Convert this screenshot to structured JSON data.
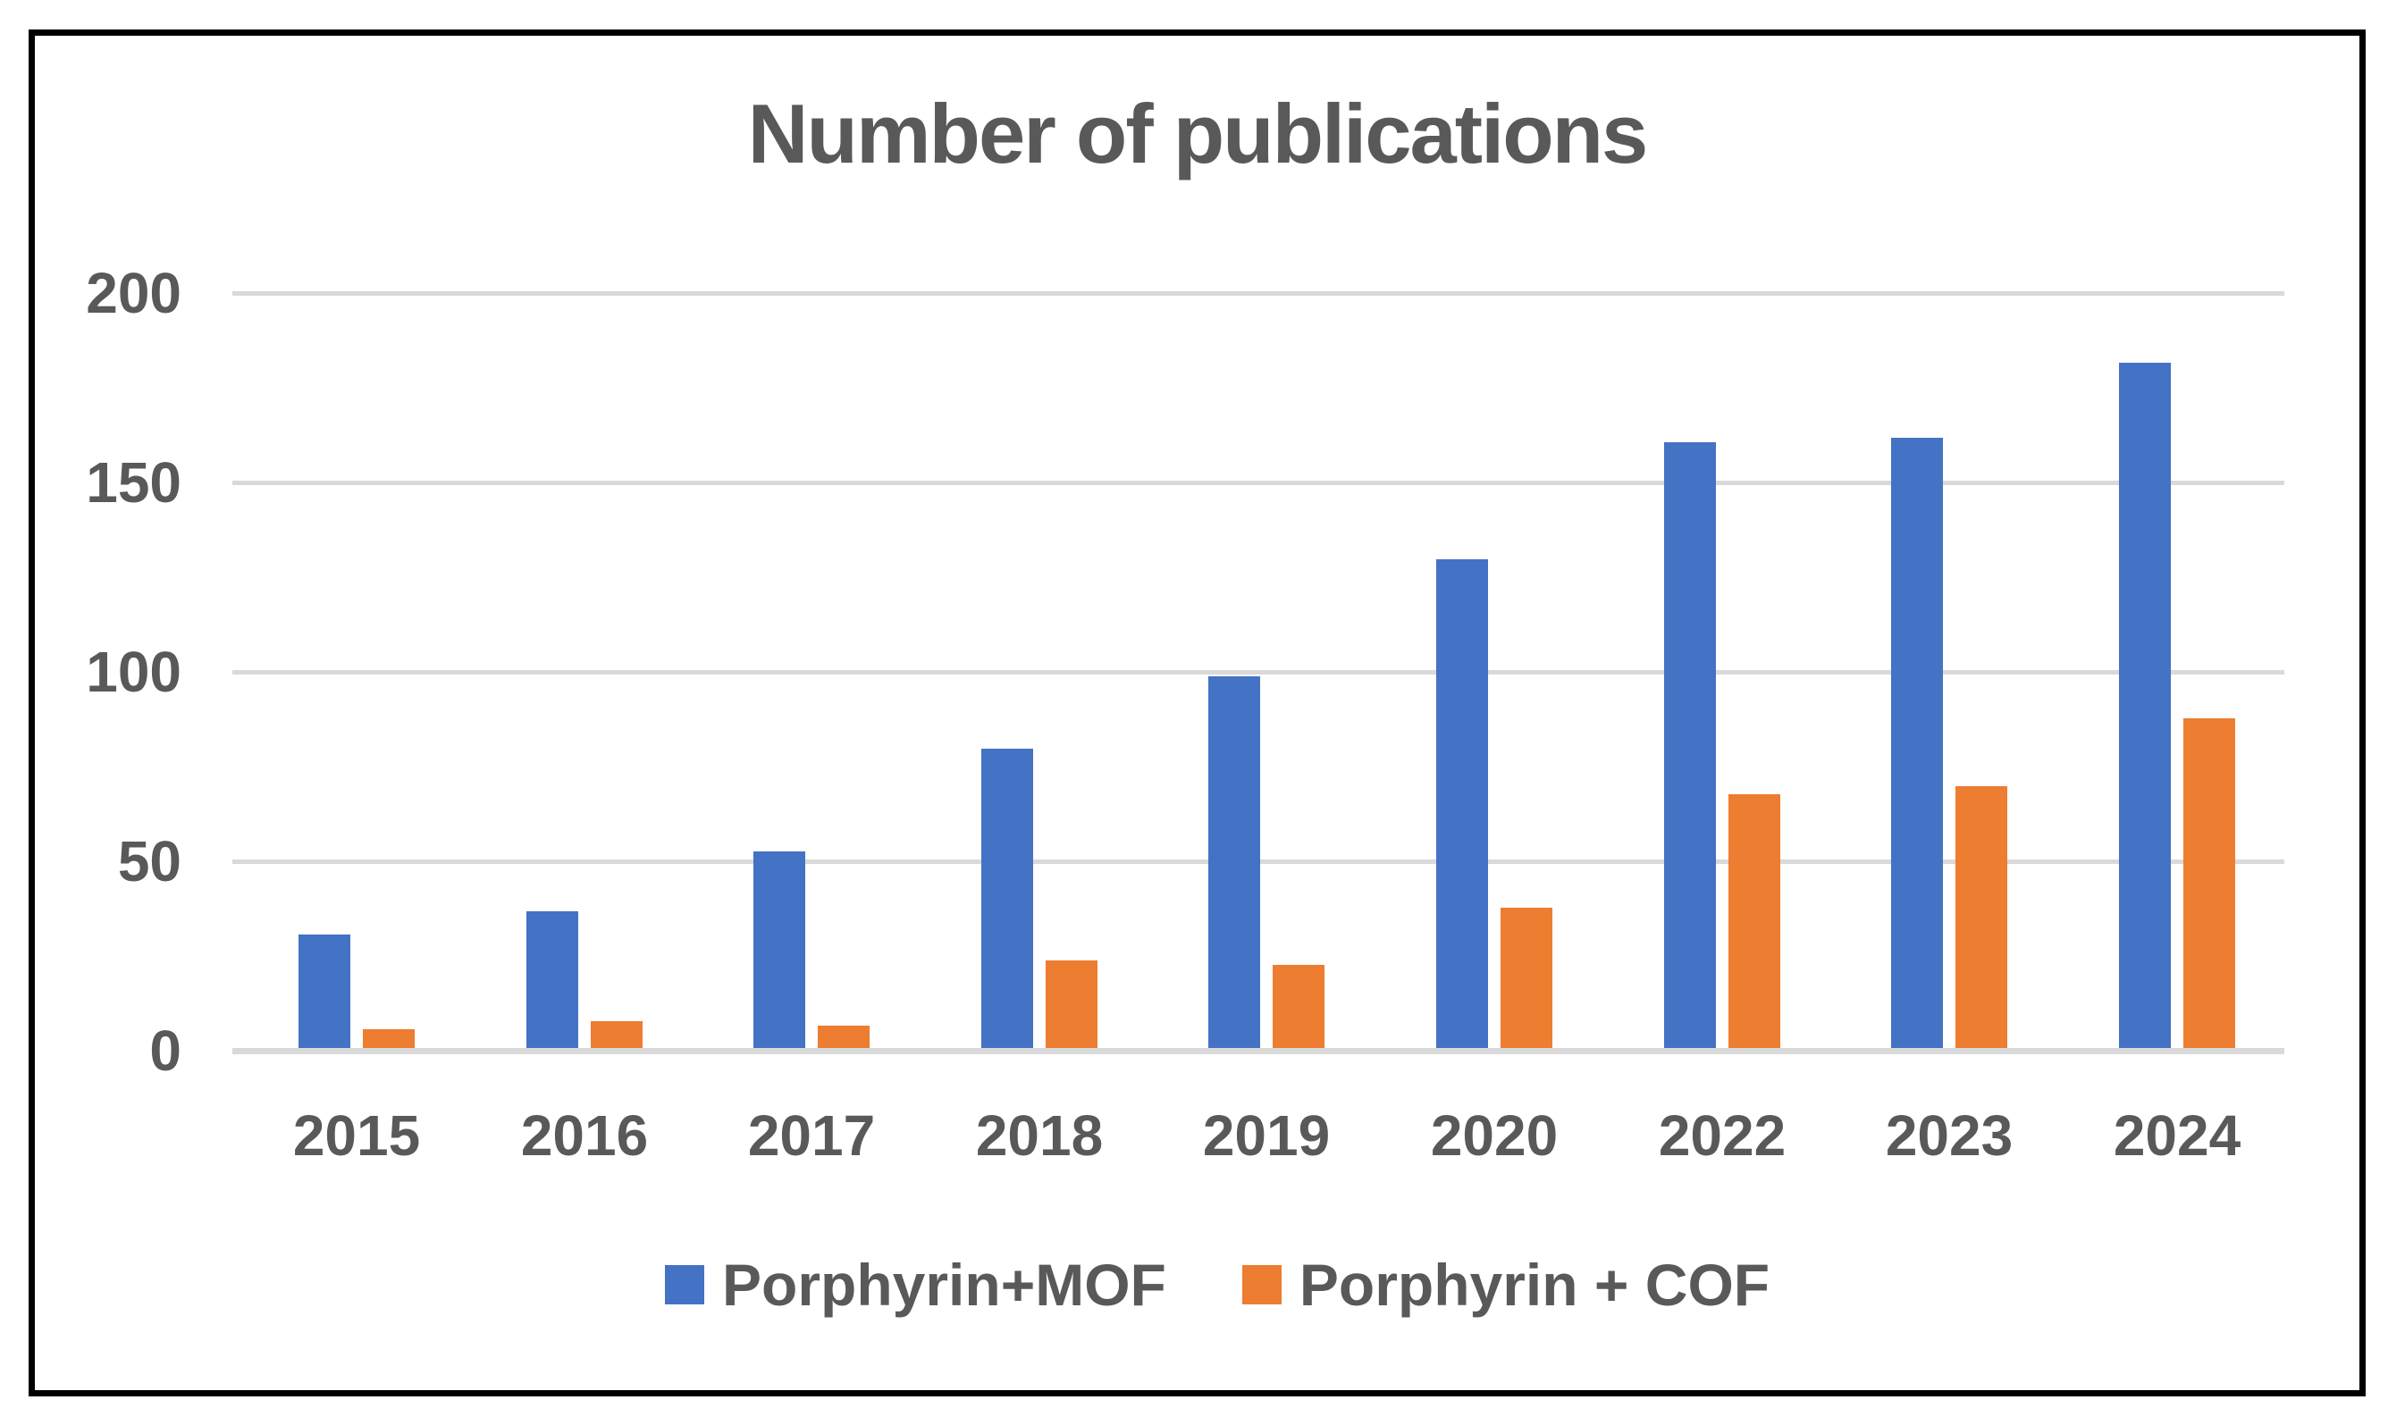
{
  "chart_data": {
    "type": "bar",
    "title": "Number of publications",
    "categories": [
      "2015",
      "2016",
      "2017",
      "2018",
      "2019",
      "2020",
      "2022",
      "2023",
      "2024"
    ],
    "series": [
      {
        "name": "Porphyrin+MOF",
        "color": "#4472C4",
        "values": [
          30,
          36,
          52,
          79,
          98,
          129,
          160,
          161,
          181
        ]
      },
      {
        "name": "Porphyrin + COF",
        "color": "#ED7D31",
        "values": [
          5,
          7,
          6,
          23,
          22,
          37,
          67,
          69,
          87
        ]
      }
    ],
    "xlabel": "",
    "ylabel": "",
    "ylim": [
      0,
      200
    ],
    "yticks": [
      0,
      50,
      100,
      150,
      200
    ],
    "grid": true,
    "legend_position": "bottom"
  },
  "colors": {
    "text": "#595959",
    "gridline": "#D9D9D9",
    "border": "#000000",
    "background": "#FFFFFF",
    "series_blue": "#4472C4",
    "series_orange": "#ED7D31"
  }
}
